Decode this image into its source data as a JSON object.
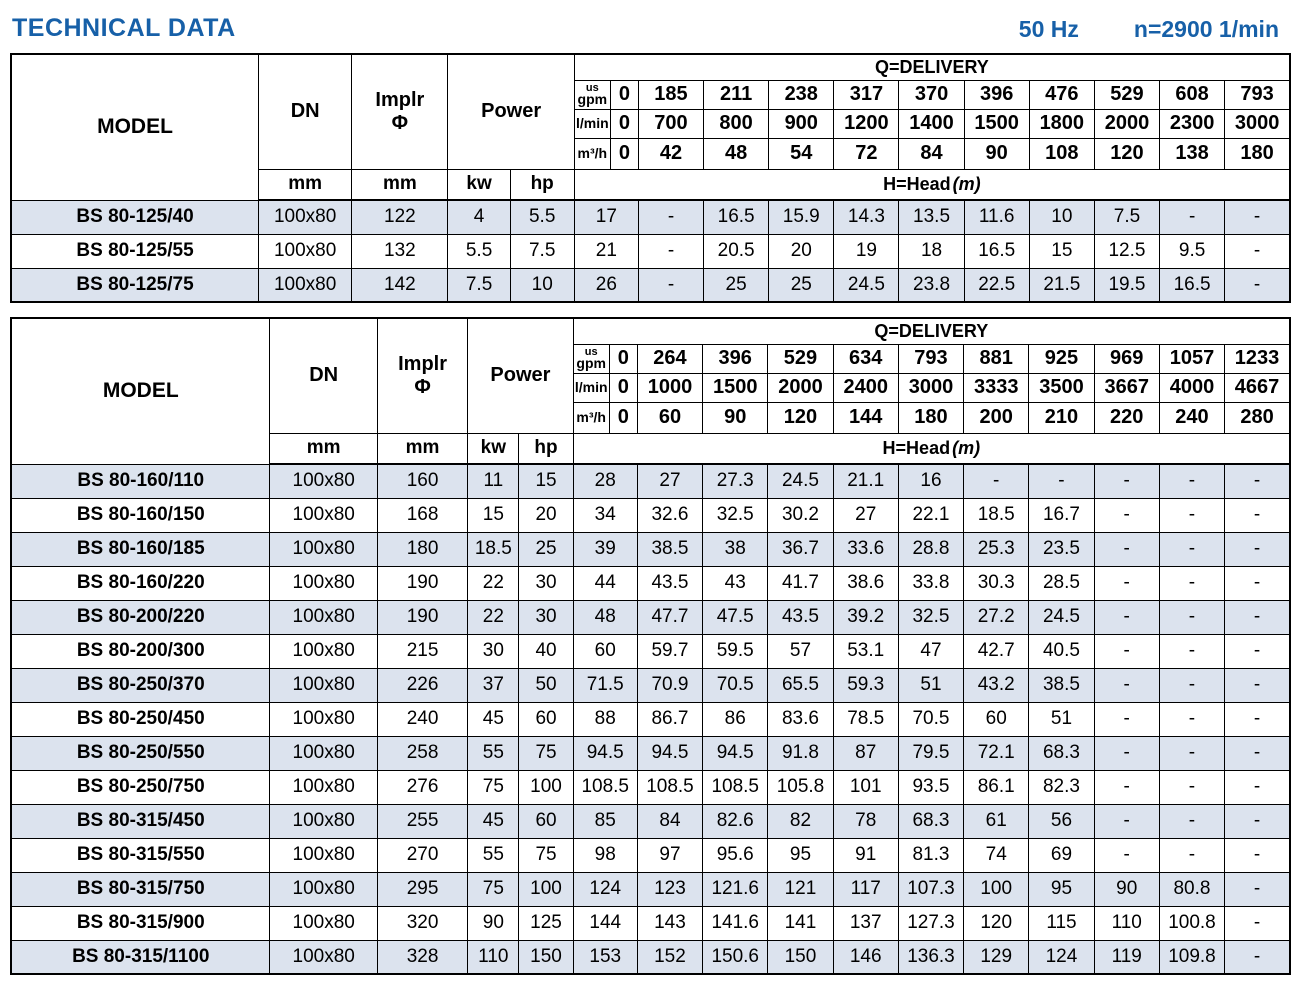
{
  "header": {
    "title": "TECHNICAL DATA",
    "frequency": "50 Hz",
    "speed": "n=2900 1/min"
  },
  "colors": {
    "accent_blue": "#1760a8",
    "row_shade": "#dce3ee"
  },
  "labels": {
    "model": "MODEL",
    "dn": "DN",
    "implr_line1": "Implr",
    "implr_line2": "Φ",
    "power": "Power",
    "mm": "mm",
    "kw": "kw",
    "hp": "hp",
    "q_delivery": "Q=DELIVERY",
    "unit_us": "us",
    "unit_gpm": "gpm",
    "unit_lmin": "l/min",
    "unit_m3h": "m³/h",
    "zero": "0",
    "head": "H=Head",
    "head_unit": "(m)"
  },
  "tables": [
    {
      "cols": [
        247,
        93,
        96,
        62,
        64,
        36,
        28,
        65,
        65,
        65,
        65,
        65,
        65,
        65,
        65,
        65,
        65
      ],
      "usgpm": [
        "185",
        "211",
        "238",
        "317",
        "370",
        "396",
        "476",
        "529",
        "608",
        "793"
      ],
      "lmin": [
        "700",
        "800",
        "900",
        "1200",
        "1400",
        "1500",
        "1800",
        "2000",
        "2300",
        "3000"
      ],
      "m3h": [
        "42",
        "48",
        "54",
        "72",
        "84",
        "90",
        "108",
        "120",
        "138",
        "180"
      ],
      "rows": [
        {
          "model": "BS 80-125/40",
          "dn": "100x80",
          "implr": "122",
          "kw": "4",
          "hp": "5.5",
          "head": [
            "17",
            "-",
            "16.5",
            "15.9",
            "14.3",
            "13.5",
            "11.6",
            "10",
            "7.5",
            "-",
            "-"
          ]
        },
        {
          "model": "BS 80-125/55",
          "dn": "100x80",
          "implr": "132",
          "kw": "5.5",
          "hp": "7.5",
          "head": [
            "21",
            "-",
            "20.5",
            "20",
            "19",
            "18",
            "16.5",
            "15",
            "12.5",
            "9.5",
            "-"
          ]
        },
        {
          "model": "BS 80-125/75",
          "dn": "100x80",
          "implr": "142",
          "kw": "7.5",
          "hp": "10",
          "head": [
            "26",
            "-",
            "25",
            "25",
            "24.5",
            "23.8",
            "22.5",
            "21.5",
            "19.5",
            "16.5",
            "-"
          ]
        }
      ]
    },
    {
      "cols": [
        258,
        107,
        90,
        51,
        54,
        36,
        28,
        65,
        65,
        65,
        65,
        65,
        65,
        65,
        65,
        65,
        65
      ],
      "usgpm": [
        "264",
        "396",
        "529",
        "634",
        "793",
        "881",
        "925",
        "969",
        "1057",
        "1233"
      ],
      "lmin": [
        "1000",
        "1500",
        "2000",
        "2400",
        "3000",
        "3333",
        "3500",
        "3667",
        "4000",
        "4667"
      ],
      "m3h": [
        "60",
        "90",
        "120",
        "144",
        "180",
        "200",
        "210",
        "220",
        "240",
        "280"
      ],
      "rows": [
        {
          "model": "BS 80-160/110",
          "dn": "100x80",
          "implr": "160",
          "kw": "11",
          "hp": "15",
          "head": [
            "28",
            "27",
            "27.3",
            "24.5",
            "21.1",
            "16",
            "-",
            "-",
            "-",
            "-",
            "-"
          ]
        },
        {
          "model": "BS 80-160/150",
          "dn": "100x80",
          "implr": "168",
          "kw": "15",
          "hp": "20",
          "head": [
            "34",
            "32.6",
            "32.5",
            "30.2",
            "27",
            "22.1",
            "18.5",
            "16.7",
            "-",
            "-",
            "-"
          ]
        },
        {
          "model": "BS 80-160/185",
          "dn": "100x80",
          "implr": "180",
          "kw": "18.5",
          "hp": "25",
          "head": [
            "39",
            "38.5",
            "38",
            "36.7",
            "33.6",
            "28.8",
            "25.3",
            "23.5",
            "-",
            "-",
            "-"
          ]
        },
        {
          "model": "BS 80-160/220",
          "dn": "100x80",
          "implr": "190",
          "kw": "22",
          "hp": "30",
          "head": [
            "44",
            "43.5",
            "43",
            "41.7",
            "38.6",
            "33.8",
            "30.3",
            "28.5",
            "-",
            "-",
            "-"
          ]
        },
        {
          "model": "BS 80-200/220",
          "dn": "100x80",
          "implr": "190",
          "kw": "22",
          "hp": "30",
          "head": [
            "48",
            "47.7",
            "47.5",
            "43.5",
            "39.2",
            "32.5",
            "27.2",
            "24.5",
            "-",
            "-",
            "-"
          ]
        },
        {
          "model": "BS 80-200/300",
          "dn": "100x80",
          "implr": "215",
          "kw": "30",
          "hp": "40",
          "head": [
            "60",
            "59.7",
            "59.5",
            "57",
            "53.1",
            "47",
            "42.7",
            "40.5",
            "-",
            "-",
            "-"
          ]
        },
        {
          "model": "BS 80-250/370",
          "dn": "100x80",
          "implr": "226",
          "kw": "37",
          "hp": "50",
          "head": [
            "71.5",
            "70.9",
            "70.5",
            "65.5",
            "59.3",
            "51",
            "43.2",
            "38.5",
            "-",
            "-",
            "-"
          ]
        },
        {
          "model": "BS 80-250/450",
          "dn": "100x80",
          "implr": "240",
          "kw": "45",
          "hp": "60",
          "head": [
            "88",
            "86.7",
            "86",
            "83.6",
            "78.5",
            "70.5",
            "60",
            "51",
            "-",
            "-",
            "-"
          ]
        },
        {
          "model": "BS 80-250/550",
          "dn": "100x80",
          "implr": "258",
          "kw": "55",
          "hp": "75",
          "head": [
            "94.5",
            "94.5",
            "94.5",
            "91.8",
            "87",
            "79.5",
            "72.1",
            "68.3",
            "-",
            "-",
            "-"
          ]
        },
        {
          "model": "BS 80-250/750",
          "dn": "100x80",
          "implr": "276",
          "kw": "75",
          "hp": "100",
          "head": [
            "108.5",
            "108.5",
            "108.5",
            "105.8",
            "101",
            "93.5",
            "86.1",
            "82.3",
            "-",
            "-",
            "-"
          ]
        },
        {
          "model": "BS 80-315/450",
          "dn": "100x80",
          "implr": "255",
          "kw": "45",
          "hp": "60",
          "head": [
            "85",
            "84",
            "82.6",
            "82",
            "78",
            "68.3",
            "61",
            "56",
            "-",
            "-",
            "-"
          ]
        },
        {
          "model": "BS 80-315/550",
          "dn": "100x80",
          "implr": "270",
          "kw": "55",
          "hp": "75",
          "head": [
            "98",
            "97",
            "95.6",
            "95",
            "91",
            "81.3",
            "74",
            "69",
            "-",
            "-",
            "-"
          ]
        },
        {
          "model": "BS 80-315/750",
          "dn": "100x80",
          "implr": "295",
          "kw": "75",
          "hp": "100",
          "head": [
            "124",
            "123",
            "121.6",
            "121",
            "117",
            "107.3",
            "100",
            "95",
            "90",
            "80.8",
            "-"
          ]
        },
        {
          "model": "BS 80-315/900",
          "dn": "100x80",
          "implr": "320",
          "kw": "90",
          "hp": "125",
          "head": [
            "144",
            "143",
            "141.6",
            "141",
            "137",
            "127.3",
            "120",
            "115",
            "110",
            "100.8",
            "-"
          ]
        },
        {
          "model": "BS 80-315/1100",
          "dn": "100x80",
          "implr": "328",
          "kw": "110",
          "hp": "150",
          "head": [
            "153",
            "152",
            "150.6",
            "150",
            "146",
            "136.3",
            "129",
            "124",
            "119",
            "109.8",
            "-"
          ]
        }
      ]
    }
  ]
}
